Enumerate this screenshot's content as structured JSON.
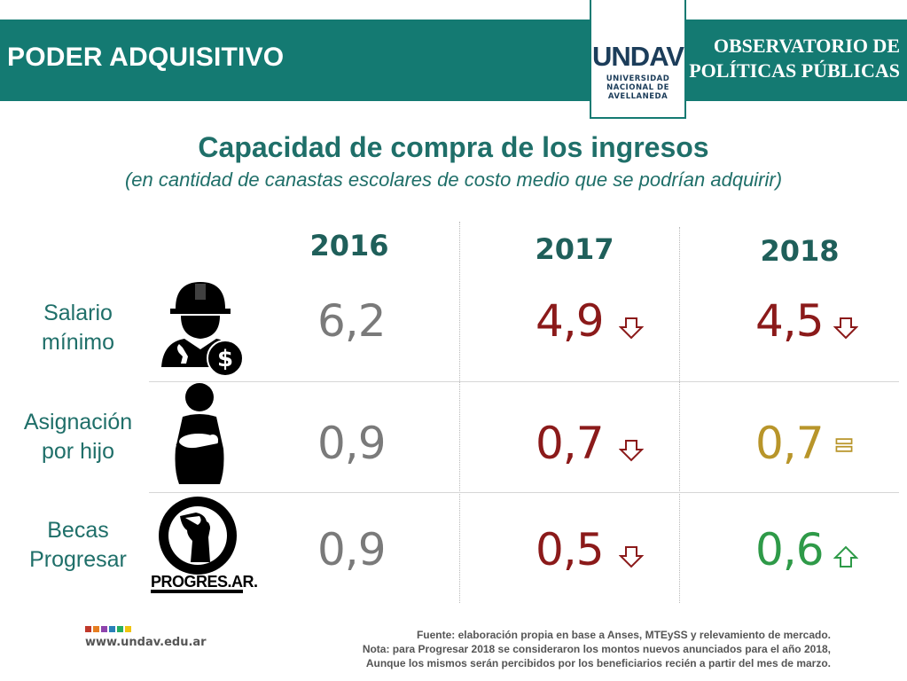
{
  "header": {
    "title": "PODER ADQUISITIVO",
    "org_line1": "OBSERVATORIO DE",
    "org_line2": "POLÍTICAS PÚBLICAS",
    "logo_word": "UNDAV",
    "logo_sub1": "UNIVERSIDAD",
    "logo_sub2": "NACIONAL DE",
    "logo_sub3": "AVELLANEDA"
  },
  "chart_data": {
    "type": "table",
    "title": "Capacidad de compra de los ingresos",
    "subtitle": "(en cantidad de canastas escolares de costo medio que se podrían adquirir)",
    "columns": [
      "2016",
      "2017",
      "2018"
    ],
    "rows": [
      {
        "label_line1": "Salario",
        "label_line2": "mínimo",
        "icon": "worker-with-dollar-icon",
        "values": [
          "6,2",
          "4,9",
          "4,5"
        ],
        "trends": [
          "none",
          "down",
          "down"
        ],
        "colors": [
          "#7a7a7a",
          "#8b1a1a",
          "#8b1a1a"
        ]
      },
      {
        "label_line1": "Asignación",
        "label_line2": "por hijo",
        "icon": "mother-with-baby-icon",
        "values": [
          "0,9",
          "0,7",
          "0,7"
        ],
        "trends": [
          "none",
          "down",
          "equal"
        ],
        "colors": [
          "#7a7a7a",
          "#8b1a1a",
          "#b8952a"
        ]
      },
      {
        "label_line1": "Becas",
        "label_line2": "Progresar",
        "icon": "progresar-logo-icon",
        "values": [
          "0,9",
          "0,5",
          "0,6"
        ],
        "trends": [
          "none",
          "down",
          "up"
        ],
        "colors": [
          "#7a7a7a",
          "#8b1a1a",
          "#2e9a48"
        ]
      }
    ]
  },
  "logos": {
    "progresar": "PROGRES.AR."
  },
  "footer": {
    "url": "www.undav.edu.ar",
    "note_line1": "Fuente: elaboración propia en base a Anses, MTEySS y relevamiento de mercado.",
    "note_line2": "Nota: para Progresar 2018 se consideraron los montos nuevos anunciados para el año 2018,",
    "note_line3": "Aunque los mismos serán percibidos por los beneficiarios recién a partir del mes de marzo."
  },
  "colors": {
    "teal": "#147a72",
    "title": "#1f6f69",
    "down": "#8b1a1a",
    "equal": "#b8952a",
    "up": "#2e9a48",
    "neutral": "#7a7a7a"
  }
}
